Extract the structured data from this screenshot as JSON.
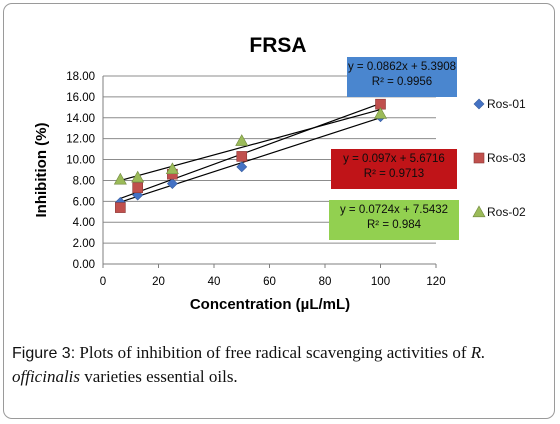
{
  "chart_data": {
    "type": "scatter",
    "title": "FRSA",
    "xlabel": "Concentration (µL/mL)",
    "ylabel": "Inhibition (%)",
    "xlim": [
      0,
      120
    ],
    "ylim": [
      0,
      18
    ],
    "x_ticks": [
      "0",
      "20",
      "40",
      "60",
      "80",
      "100",
      "120"
    ],
    "y_ticks": [
      "0.00",
      "2.00",
      "4.00",
      "6.00",
      "8.00",
      "10.00",
      "12.00",
      "14.00",
      "16.00",
      "18.00"
    ],
    "grid": "horizontal",
    "legend_position": "right",
    "series": [
      {
        "name": "Ros-01",
        "color": "#4472c4",
        "marker": "diamond",
        "x": [
          6.25,
          12.5,
          25,
          50,
          100
        ],
        "y": [
          5.9,
          6.6,
          7.7,
          9.3,
          14.1
        ],
        "trendline": {
          "slope": 0.0862,
          "intercept": 5.3908
        },
        "equation": "y = 0.0862x + 5.3908",
        "r2": "R² = 0.9956",
        "box_color": "#4a86cf"
      },
      {
        "name": "Ros-03",
        "color": "#c0504d",
        "marker": "square",
        "x": [
          6.25,
          12.5,
          25,
          50,
          100
        ],
        "y": [
          5.4,
          7.3,
          8.6,
          10.3,
          15.3
        ],
        "trendline": {
          "slope": 0.097,
          "intercept": 5.6716
        },
        "equation": "y = 0.097x + 5.6716",
        "r2": "R² = 0.9713",
        "box_color": "#c01418"
      },
      {
        "name": "Ros-02",
        "color": "#9bbb59",
        "marker": "triangle",
        "x": [
          6.25,
          12.5,
          25,
          50,
          100
        ],
        "y": [
          8.1,
          8.3,
          9.1,
          11.8,
          14.4
        ],
        "trendline": {
          "slope": 0.0724,
          "intercept": 7.5432
        },
        "equation": "y = 0.0724x + 7.5432",
        "r2": "R² = 0.984",
        "box_color": "#92d050"
      }
    ]
  },
  "caption": {
    "lead": "Figure 3:",
    "text_before": " Plots of inhibition of free radical scavenging activities of ",
    "italic": "R. officinalis",
    "text_after": " varieties essential oils."
  }
}
